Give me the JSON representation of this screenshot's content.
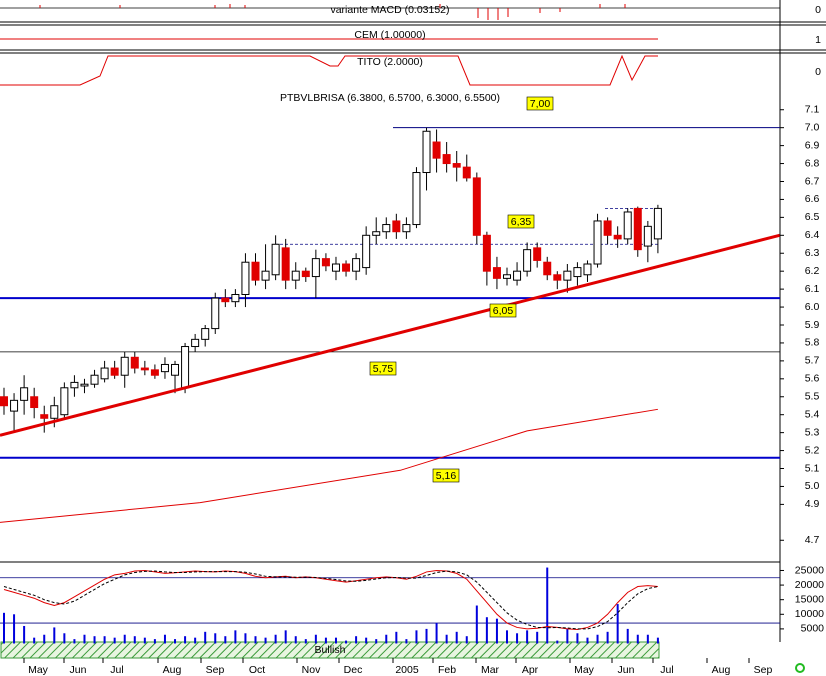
{
  "indicators": [
    {
      "title": "variante MACD (0.03152)",
      "axis_label": "0"
    },
    {
      "title": "CEM (1.00000)",
      "axis_label": "1"
    },
    {
      "title": "TITO (2.0000)",
      "axis_label": "0"
    }
  ],
  "signal": "Bullish",
  "chart_data": [
    {
      "type": "candlestick",
      "title": "PTBVLBRISA (6.3800, 6.5700, 6.3000, 6.5500)",
      "x_labels": [
        "May",
        "Jun",
        "Jul",
        "Aug",
        "Sep",
        "Oct",
        "Nov",
        "Dec",
        "2005",
        "Feb",
        "Mar",
        "Apr",
        "May",
        "Jun",
        "Jul",
        "Aug",
        "Sep"
      ],
      "open": [
        5.5,
        5.42,
        5.48,
        5.5,
        5.4,
        5.38,
        5.4,
        5.55,
        5.56,
        5.57,
        5.6,
        5.66,
        5.62,
        5.72,
        5.66,
        5.65,
        5.64,
        5.62,
        5.55,
        5.78,
        5.82,
        5.88,
        6.05,
        6.03,
        6.07,
        6.25,
        6.15,
        6.18,
        6.33,
        6.15,
        6.2,
        6.17,
        6.27,
        6.2,
        6.24,
        6.2,
        6.22,
        6.4,
        6.42,
        6.48,
        6.42,
        6.46,
        6.75,
        6.92,
        6.85,
        6.8,
        6.78,
        6.72,
        6.4,
        6.22,
        6.16,
        6.15,
        6.2,
        6.33,
        6.25,
        6.18,
        6.15,
        6.17,
        6.18,
        6.24,
        6.48,
        6.4,
        6.38,
        6.55,
        6.34,
        6.38
      ],
      "high": [
        5.55,
        5.52,
        5.62,
        5.55,
        5.45,
        5.5,
        5.58,
        5.62,
        5.6,
        5.65,
        5.7,
        5.7,
        5.75,
        5.75,
        5.7,
        5.68,
        5.72,
        5.7,
        5.8,
        5.85,
        5.9,
        6.08,
        6.1,
        6.1,
        6.3,
        6.3,
        6.35,
        6.4,
        6.38,
        6.25,
        6.22,
        6.32,
        6.3,
        6.28,
        6.26,
        6.3,
        6.45,
        6.5,
        6.5,
        6.52,
        6.5,
        6.78,
        7.0,
        6.99,
        6.92,
        6.87,
        6.85,
        6.75,
        6.42,
        6.28,
        6.22,
        6.25,
        6.36,
        6.36,
        6.28,
        6.2,
        6.24,
        6.25,
        6.26,
        6.52,
        6.5,
        6.45,
        6.55,
        6.56,
        6.48,
        6.57
      ],
      "low": [
        5.4,
        5.3,
        5.4,
        5.38,
        5.3,
        5.33,
        5.38,
        5.5,
        5.52,
        5.55,
        5.58,
        5.6,
        5.55,
        5.63,
        5.62,
        5.6,
        5.6,
        5.52,
        5.52,
        5.75,
        5.78,
        5.85,
        6.0,
        6.0,
        6.0,
        6.12,
        6.1,
        6.15,
        6.1,
        6.1,
        6.14,
        6.05,
        6.2,
        6.15,
        6.17,
        6.15,
        6.18,
        6.35,
        6.38,
        6.38,
        6.38,
        6.44,
        6.65,
        6.75,
        6.75,
        6.7,
        6.7,
        6.35,
        6.12,
        6.1,
        6.12,
        6.12,
        6.17,
        6.22,
        6.15,
        6.1,
        6.08,
        6.12,
        6.14,
        6.22,
        6.35,
        6.33,
        6.35,
        6.28,
        6.25,
        6.3
      ],
      "close": [
        5.45,
        5.48,
        5.55,
        5.44,
        5.38,
        5.45,
        5.55,
        5.58,
        5.57,
        5.62,
        5.66,
        5.62,
        5.72,
        5.66,
        5.65,
        5.62,
        5.68,
        5.68,
        5.78,
        5.82,
        5.88,
        6.05,
        6.03,
        6.07,
        6.25,
        6.15,
        6.2,
        6.35,
        6.15,
        6.2,
        6.17,
        6.27,
        6.23,
        6.24,
        6.2,
        6.27,
        6.4,
        6.42,
        6.46,
        6.42,
        6.46,
        6.75,
        6.98,
        6.83,
        6.8,
        6.78,
        6.72,
        6.4,
        6.2,
        6.16,
        6.18,
        6.2,
        6.32,
        6.26,
        6.18,
        6.15,
        6.2,
        6.22,
        6.24,
        6.48,
        6.4,
        6.38,
        6.53,
        6.32,
        6.45,
        6.55
      ],
      "up_color": "#ffffff",
      "down_color": "#e00000",
      "ylim": [
        4.59,
        7.21
      ],
      "yticks": [
        7.1,
        {
          "value": 7,
          "label": "7.0"
        },
        6.9,
        6.8,
        6.7,
        6.6,
        6.5,
        6.4,
        6.3,
        6.2,
        6.1,
        {
          "value": 6,
          "label": "6.0"
        },
        5.9,
        5.8,
        5.7,
        5.6,
        5.5,
        5.4,
        5.3,
        5.2,
        5.1,
        {
          "value": 5,
          "label": "5.0"
        },
        4.9,
        4.7
      ],
      "levels": [
        7.0,
        6.05,
        5.75,
        5.16
      ],
      "dashed_levels": [
        6.35,
        6.55
      ],
      "annotations": [
        "7,00",
        "6,35",
        "6,05",
        "5,75",
        "5,16"
      ],
      "trendline": {
        "x": [
          -0.4,
          77.1
        ],
        "values": [
          5.285,
          6.4
        ],
        "color": "#e00000"
      },
      "moving_average": {
        "x": [
          -0.4,
          19.5,
          39.4,
          52,
          65
        ],
        "values": [
          4.8,
          4.91,
          5.09,
          5.31,
          5.43
        ],
        "color": "#e00000"
      }
    },
    {
      "type": "volume",
      "ylim": [
        0,
        27900
      ],
      "yticks": [
        25000,
        20000,
        15000,
        10000,
        5000
      ],
      "levels": [
        22500,
        7000
      ],
      "series": [
        {
          "style": "bar",
          "color": "#0000dd",
          "values": [
            10500,
            10000,
            6000,
            2000,
            3000,
            5500,
            3500,
            1500,
            3000,
            2500,
            2500,
            2000,
            3000,
            2500,
            2000,
            1500,
            3000,
            1500,
            2500,
            2000,
            4000,
            3500,
            2500,
            4500,
            3500,
            2500,
            2000,
            3000,
            4500,
            2500,
            1500,
            3000,
            2000,
            2000,
            1000,
            2500,
            2000,
            1500,
            3000,
            4000,
            1500,
            4500,
            5000,
            7000,
            3000,
            4000,
            2500,
            13000,
            9000,
            8500,
            4500,
            3500,
            4500,
            4000,
            26000,
            1000,
            5000,
            3500,
            2000,
            3000,
            4000,
            13500,
            5000,
            3000,
            3000,
            2000
          ]
        },
        {
          "style": "line",
          "color": "#e00000",
          "values": [
            18500,
            17500,
            16500,
            15500,
            14000,
            13000,
            14000,
            16000,
            18000,
            20000,
            22000,
            23500,
            24000,
            24800,
            25000,
            24500,
            24000,
            24200,
            24500,
            24800,
            24600,
            24500,
            24800,
            24600,
            24000,
            23000,
            22500,
            22800,
            23000,
            22500,
            22800,
            22500,
            22000,
            21500,
            21000,
            21500,
            22000,
            22500,
            22800,
            22500,
            22000,
            23000,
            24500,
            25000,
            24800,
            24000,
            22000,
            18000,
            14000,
            10000,
            7000,
            5500,
            5000,
            5200,
            5800,
            5500,
            5000,
            4800,
            5500,
            7000,
            10000,
            14000,
            17500,
            19500,
            19800,
            19500
          ]
        },
        {
          "style": "dashed",
          "color": "#000000",
          "values": [
            19500,
            18500,
            17500,
            16500,
            15000,
            14000,
            13500,
            14500,
            16500,
            18500,
            20500,
            22000,
            23500,
            24300,
            24700,
            24800,
            24500,
            24300,
            24300,
            24500,
            24600,
            24600,
            24600,
            24600,
            24400,
            23800,
            23000,
            22800,
            22800,
            22700,
            22700,
            22600,
            22300,
            21900,
            21400,
            21300,
            21600,
            22100,
            22500,
            22600,
            22400,
            22400,
            23300,
            24300,
            24800,
            24500,
            23500,
            21000,
            17500,
            14000,
            10500,
            8000,
            6500,
            5500,
            5400,
            5500,
            5300,
            5000,
            5000,
            5800,
            7500,
            10500,
            14000,
            17000,
            18800,
            19500
          ]
        }
      ]
    }
  ]
}
